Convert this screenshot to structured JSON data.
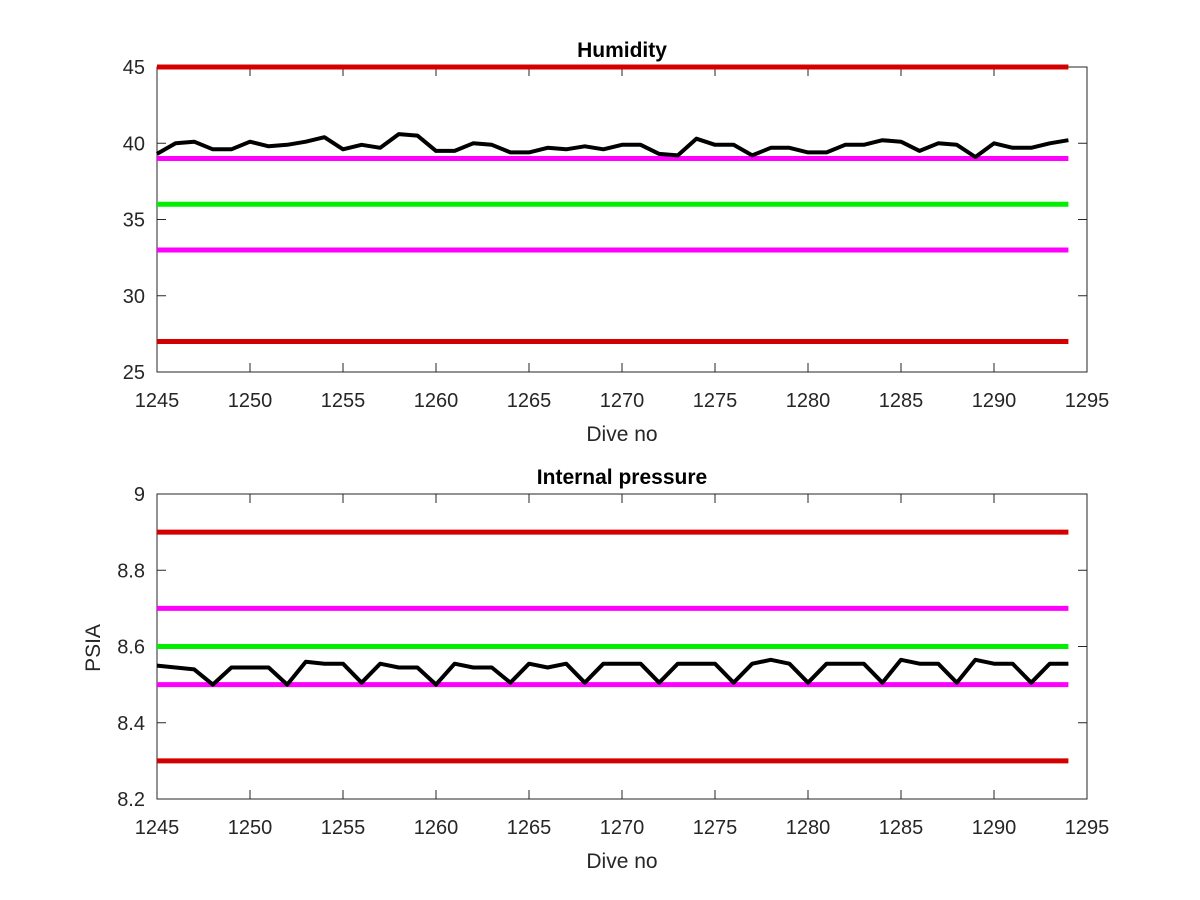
{
  "chart_data": [
    {
      "type": "line",
      "title": "Humidity",
      "xlabel": "Dive no",
      "ylabel": "",
      "xlim": [
        1245,
        1295
      ],
      "ylim": [
        25,
        45
      ],
      "xticks": [
        1245,
        1250,
        1255,
        1260,
        1265,
        1270,
        1275,
        1280,
        1285,
        1290,
        1295
      ],
      "yticks": [
        25,
        30,
        35,
        40,
        45
      ],
      "xtick_labels": [
        "1245",
        "1250",
        "1255",
        "1260",
        "1265",
        "1270",
        "1275",
        "1280",
        "1285",
        "1290",
        "1295"
      ],
      "ytick_labels": [
        "25",
        "30",
        "35",
        "40",
        "45"
      ],
      "grid": false,
      "reference_lines": [
        {
          "y": 45,
          "color": "#d40000"
        },
        {
          "y": 39,
          "color": "#ff00ff"
        },
        {
          "y": 36,
          "color": "#00ee00"
        },
        {
          "y": 33,
          "color": "#ff00ff"
        },
        {
          "y": 27,
          "color": "#d40000"
        }
      ],
      "series": [
        {
          "color": "#000000",
          "x": [
            1245,
            1246,
            1247,
            1248,
            1249,
            1250,
            1251,
            1252,
            1253,
            1254,
            1255,
            1256,
            1257,
            1258,
            1259,
            1260,
            1261,
            1262,
            1263,
            1264,
            1265,
            1266,
            1267,
            1268,
            1269,
            1270,
            1271,
            1272,
            1273,
            1274,
            1275,
            1276,
            1277,
            1278,
            1279,
            1280,
            1281,
            1282,
            1283,
            1284,
            1285,
            1286,
            1287,
            1288,
            1289,
            1290,
            1291,
            1292,
            1293,
            1294
          ],
          "values": [
            39.3,
            40.0,
            40.1,
            39.6,
            39.6,
            40.1,
            39.8,
            39.9,
            40.1,
            40.4,
            39.6,
            39.9,
            39.7,
            40.6,
            40.5,
            39.5,
            39.5,
            40.0,
            39.9,
            39.4,
            39.4,
            39.7,
            39.6,
            39.8,
            39.6,
            39.9,
            39.9,
            39.3,
            39.2,
            40.3,
            39.9,
            39.9,
            39.2,
            39.7,
            39.7,
            39.4,
            39.4,
            39.9,
            39.9,
            40.2,
            40.1,
            39.5,
            40.0,
            39.9,
            39.1,
            40.0,
            39.7,
            39.7,
            40.0,
            40.2
          ]
        }
      ]
    },
    {
      "type": "line",
      "title": "Internal pressure",
      "xlabel": "Dive no",
      "ylabel": "PSIA",
      "xlim": [
        1245,
        1295
      ],
      "ylim": [
        8.2,
        9.0
      ],
      "xticks": [
        1245,
        1250,
        1255,
        1260,
        1265,
        1270,
        1275,
        1280,
        1285,
        1290,
        1295
      ],
      "yticks": [
        8.2,
        8.4,
        8.6,
        8.8,
        9.0
      ],
      "xtick_labels": [
        "1245",
        "1250",
        "1255",
        "1260",
        "1265",
        "1270",
        "1275",
        "1280",
        "1285",
        "1290",
        "1295"
      ],
      "ytick_labels": [
        "8.2",
        "8.4",
        "8.6",
        "8.8",
        "9"
      ],
      "grid": false,
      "reference_lines": [
        {
          "y": 8.9,
          "color": "#d40000"
        },
        {
          "y": 8.7,
          "color": "#ff00ff"
        },
        {
          "y": 8.6,
          "color": "#00ee00"
        },
        {
          "y": 8.5,
          "color": "#ff00ff"
        },
        {
          "y": 8.3,
          "color": "#d40000"
        }
      ],
      "series": [
        {
          "color": "#000000",
          "x": [
            1245,
            1246,
            1247,
            1248,
            1249,
            1250,
            1251,
            1252,
            1253,
            1254,
            1255,
            1256,
            1257,
            1258,
            1259,
            1260,
            1261,
            1262,
            1263,
            1264,
            1265,
            1266,
            1267,
            1268,
            1269,
            1270,
            1271,
            1272,
            1273,
            1274,
            1275,
            1276,
            1277,
            1278,
            1279,
            1280,
            1281,
            1282,
            1283,
            1284,
            1285,
            1286,
            1287,
            1288,
            1289,
            1290,
            1291,
            1292,
            1293,
            1294
          ],
          "values": [
            8.55,
            8.545,
            8.54,
            8.5,
            8.545,
            8.545,
            8.545,
            8.5,
            8.56,
            8.555,
            8.555,
            8.505,
            8.555,
            8.545,
            8.545,
            8.5,
            8.555,
            8.545,
            8.545,
            8.505,
            8.555,
            8.545,
            8.555,
            8.505,
            8.555,
            8.555,
            8.555,
            8.505,
            8.555,
            8.555,
            8.555,
            8.505,
            8.555,
            8.565,
            8.555,
            8.505,
            8.555,
            8.555,
            8.555,
            8.505,
            8.565,
            8.555,
            8.555,
            8.505,
            8.565,
            8.555,
            8.555,
            8.505,
            8.555,
            8.555
          ]
        }
      ]
    }
  ]
}
